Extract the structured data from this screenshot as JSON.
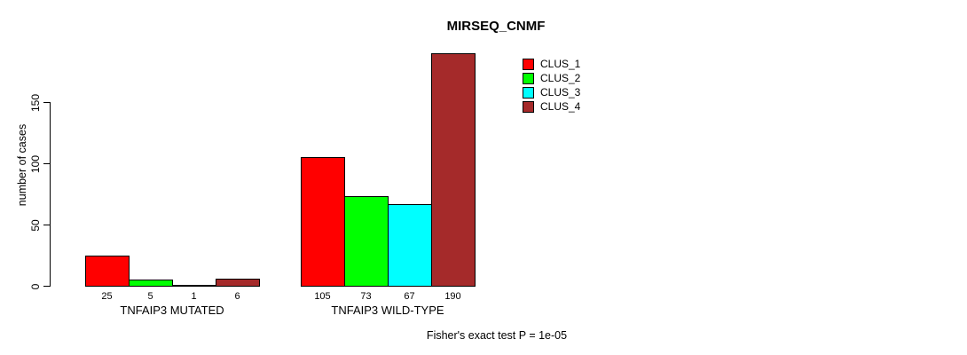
{
  "chart_data": {
    "type": "bar",
    "grouped": true,
    "title": "MIRSEQ_CNMF",
    "ylabel": "number of cases",
    "xlabel": "",
    "footnote": "Fisher's exact test P = 1e-05",
    "categories": [
      "TNFAIP3 MUTATED",
      "TNFAIP3 WILD-TYPE"
    ],
    "series": [
      {
        "name": "CLUS_1",
        "color": "#ff0000",
        "values": [
          25,
          105
        ]
      },
      {
        "name": "CLUS_2",
        "color": "#00ff00",
        "values": [
          5,
          73
        ]
      },
      {
        "name": "CLUS_3",
        "color": "#00ffff",
        "values": [
          1,
          67
        ]
      },
      {
        "name": "CLUS_4",
        "color": "#a52a2a",
        "values": [
          6,
          190
        ]
      }
    ],
    "bar_value_labels": [
      [
        25,
        5,
        1,
        6
      ],
      [
        105,
        73,
        67,
        190
      ]
    ],
    "yticks": [
      0,
      50,
      100,
      150
    ],
    "ylim": [
      0,
      190
    ],
    "grid": false,
    "legend_position": "top-right",
    "background": "#ffffff",
    "axis_color": "#000000"
  }
}
